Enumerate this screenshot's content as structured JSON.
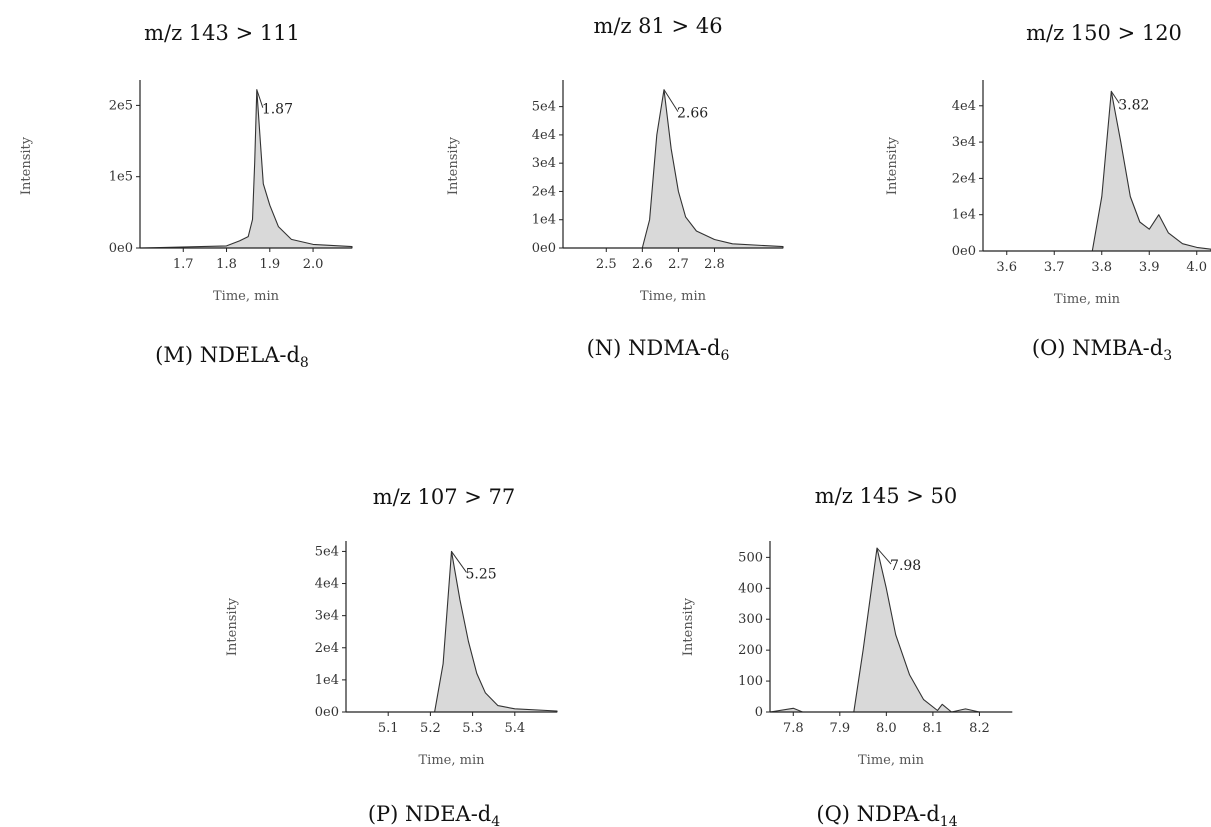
{
  "chart_data": [
    {
      "type": "line",
      "panel": "M",
      "title": "m/z 143 > 111",
      "caption": {
        "text": "(M) NDELA-d",
        "sub": "8"
      },
      "xlabel": "Time, min",
      "ylabel": "Intensity",
      "xlim": [
        1.6,
        2.09
      ],
      "ylim": [
        0,
        230000
      ],
      "xticks": [
        {
          "v": 1.7,
          "label": "1.7"
        },
        {
          "v": 1.8,
          "label": "1.8"
        },
        {
          "v": 1.9,
          "label": "1.9"
        },
        {
          "v": 2.0,
          "label": "2.0"
        }
      ],
      "yticks": [
        {
          "v": 0,
          "label": "0e0"
        },
        {
          "v": 100000,
          "label": "1e5"
        },
        {
          "v": 200000,
          "label": "2e5"
        }
      ],
      "peak": {
        "x": 1.87,
        "y": 222000,
        "label": "1.87"
      },
      "points": [
        [
          1.6,
          0
        ],
        [
          1.8,
          3000
        ],
        [
          1.83,
          10000
        ],
        [
          1.85,
          16000
        ],
        [
          1.86,
          40000
        ],
        [
          1.865,
          120000
        ],
        [
          1.87,
          222000
        ],
        [
          1.878,
          150000
        ],
        [
          1.885,
          90000
        ],
        [
          1.9,
          60000
        ],
        [
          1.92,
          30000
        ],
        [
          1.95,
          12000
        ],
        [
          2.0,
          5000
        ],
        [
          2.09,
          2000
        ]
      ]
    },
    {
      "type": "line",
      "panel": "N",
      "title": "m/z 81 > 46",
      "caption": {
        "text": "(N) NDMA-d",
        "sub": "6"
      },
      "xlabel": "Time, min",
      "ylabel": "Intensity",
      "xlim": [
        2.38,
        2.99
      ],
      "ylim": [
        0,
        58000
      ],
      "xticks": [
        {
          "v": 2.5,
          "label": "2.5"
        },
        {
          "v": 2.6,
          "label": "2.6"
        },
        {
          "v": 2.7,
          "label": "2.7"
        },
        {
          "v": 2.8,
          "label": "2.8"
        }
      ],
      "yticks": [
        {
          "v": 0,
          "label": "0e0"
        },
        {
          "v": 10000,
          "label": "1e4"
        },
        {
          "v": 20000,
          "label": "2e4"
        },
        {
          "v": 30000,
          "label": "3e4"
        },
        {
          "v": 40000,
          "label": "4e4"
        },
        {
          "v": 50000,
          "label": "5e4"
        }
      ],
      "peak": {
        "x": 2.66,
        "y": 56000,
        "label": "2.66"
      },
      "points": [
        [
          2.38,
          0
        ],
        [
          2.6,
          0
        ],
        [
          2.62,
          10000
        ],
        [
          2.64,
          40000
        ],
        [
          2.66,
          56000
        ],
        [
          2.68,
          35000
        ],
        [
          2.7,
          20000
        ],
        [
          2.72,
          11000
        ],
        [
          2.75,
          6000
        ],
        [
          2.8,
          3000
        ],
        [
          2.85,
          1500
        ],
        [
          2.99,
          500
        ]
      ]
    },
    {
      "type": "line",
      "panel": "O",
      "title": "m/z 150 > 120",
      "caption": {
        "text": "(O) NMBA-d",
        "sub": "3"
      },
      "xlabel": "Time, min",
      "ylabel": "Intensity",
      "xlim": [
        3.55,
        4.03
      ],
      "ylim": [
        0,
        46000
      ],
      "xticks": [
        {
          "v": 3.6,
          "label": "3.6"
        },
        {
          "v": 3.7,
          "label": "3.7"
        },
        {
          "v": 3.8,
          "label": "3.8"
        },
        {
          "v": 3.9,
          "label": "3.9"
        },
        {
          "v": 4.0,
          "label": "4.0"
        }
      ],
      "yticks": [
        {
          "v": 0,
          "label": "0e0"
        },
        {
          "v": 10000,
          "label": "1e4"
        },
        {
          "v": 20000,
          "label": "2e4"
        },
        {
          "v": 30000,
          "label": "3e4"
        },
        {
          "v": 40000,
          "label": "4e4"
        }
      ],
      "peak": {
        "x": 3.82,
        "y": 44000,
        "label": "3.82"
      },
      "points": [
        [
          3.55,
          0
        ],
        [
          3.78,
          0
        ],
        [
          3.8,
          15000
        ],
        [
          3.82,
          44000
        ],
        [
          3.84,
          30000
        ],
        [
          3.86,
          15000
        ],
        [
          3.88,
          8000
        ],
        [
          3.9,
          6000
        ],
        [
          3.92,
          10000
        ],
        [
          3.94,
          5000
        ],
        [
          3.97,
          2000
        ],
        [
          4.0,
          1000
        ],
        [
          4.03,
          500
        ]
      ]
    },
    {
      "type": "line",
      "panel": "P",
      "title": "m/z 107 > 77",
      "caption": {
        "text": "(P) NDEA-d",
        "sub": "4"
      },
      "xlabel": "Time, min",
      "ylabel": "Intensity",
      "xlim": [
        5.0,
        5.5
      ],
      "ylim": [
        0,
        52000
      ],
      "xticks": [
        {
          "v": 5.1,
          "label": "5.1"
        },
        {
          "v": 5.2,
          "label": "5.2"
        },
        {
          "v": 5.3,
          "label": "5.3"
        },
        {
          "v": 5.4,
          "label": "5.4"
        }
      ],
      "yticks": [
        {
          "v": 0,
          "label": "0e0"
        },
        {
          "v": 10000,
          "label": "1e4"
        },
        {
          "v": 20000,
          "label": "2e4"
        },
        {
          "v": 30000,
          "label": "3e4"
        },
        {
          "v": 40000,
          "label": "4e4"
        },
        {
          "v": 50000,
          "label": "5e4"
        }
      ],
      "peak": {
        "x": 5.25,
        "y": 50000,
        "label": "5.25"
      },
      "points": [
        [
          5.0,
          0
        ],
        [
          5.21,
          0
        ],
        [
          5.23,
          15000
        ],
        [
          5.25,
          50000
        ],
        [
          5.27,
          35000
        ],
        [
          5.29,
          22000
        ],
        [
          5.31,
          12000
        ],
        [
          5.33,
          6000
        ],
        [
          5.36,
          2000
        ],
        [
          5.4,
          1000
        ],
        [
          5.5,
          300
        ]
      ]
    },
    {
      "type": "line",
      "panel": "Q",
      "title": "m/z 145 > 50",
      "caption": {
        "text": "(Q) NDPA-d",
        "sub": "14"
      },
      "xlabel": "Time, min",
      "ylabel": "Intensity",
      "xlim": [
        7.75,
        8.27
      ],
      "ylim": [
        0,
        540
      ],
      "xticks": [
        {
          "v": 7.8,
          "label": "7.8"
        },
        {
          "v": 7.9,
          "label": "7.9"
        },
        {
          "v": 8.0,
          "label": "8.0"
        },
        {
          "v": 8.1,
          "label": "8.1"
        },
        {
          "v": 8.2,
          "label": "8.2"
        }
      ],
      "yticks": [
        {
          "v": 0,
          "label": "0"
        },
        {
          "v": 100,
          "label": "100"
        },
        {
          "v": 200,
          "label": "200"
        },
        {
          "v": 300,
          "label": "300"
        },
        {
          "v": 400,
          "label": "400"
        },
        {
          "v": 500,
          "label": "500"
        }
      ],
      "peak": {
        "x": 7.98,
        "y": 530,
        "label": "7.98"
      },
      "points": [
        [
          7.75,
          0
        ],
        [
          7.8,
          12
        ],
        [
          7.82,
          0
        ],
        [
          7.93,
          0
        ],
        [
          7.95,
          200
        ],
        [
          7.98,
          530
        ],
        [
          8.0,
          400
        ],
        [
          8.02,
          250
        ],
        [
          8.05,
          120
        ],
        [
          8.08,
          40
        ],
        [
          8.11,
          5
        ],
        [
          8.12,
          25
        ],
        [
          8.14,
          0
        ],
        [
          8.17,
          10
        ],
        [
          8.2,
          0
        ],
        [
          8.27,
          0
        ]
      ]
    }
  ]
}
